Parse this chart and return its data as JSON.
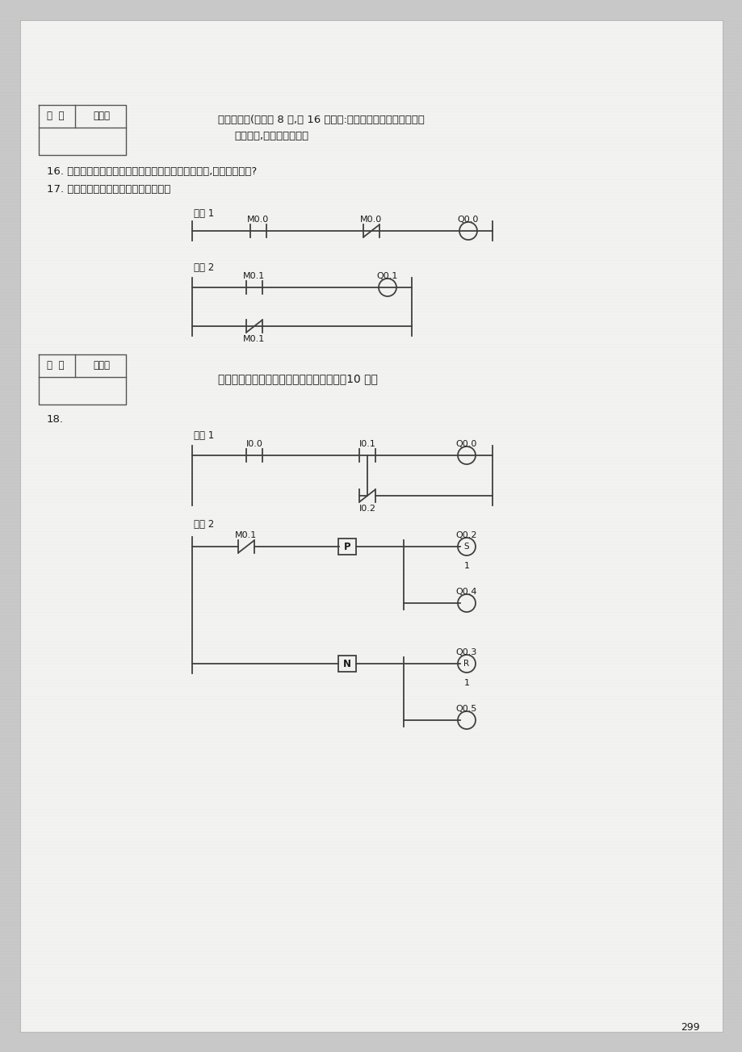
{
  "bg_color": "#c8c8c8",
  "page_bg": "#f2f2f0",
  "line_color": "#404040",
  "text_color": "#1a1a1a",
  "page_number": "299",
  "section3_title": "三、简答题(每小题 8 分,共 16 分。注:此题同学们可接自己理解的",
  "section3_subtitle": "语言解答,意思正确即可）",
  "q16": "16. 电磁式继电器与电磁式接触器同是用来通断电路的,它们有何不同?",
  "q17": "17. 试分析以下梯形图实现的基本功能。",
  "section4_title": "四、根据梯形图写出对应的语句表指令。（10 分）",
  "q18": "18.",
  "net1_label": "网络 1",
  "net2_label": "网络 2"
}
